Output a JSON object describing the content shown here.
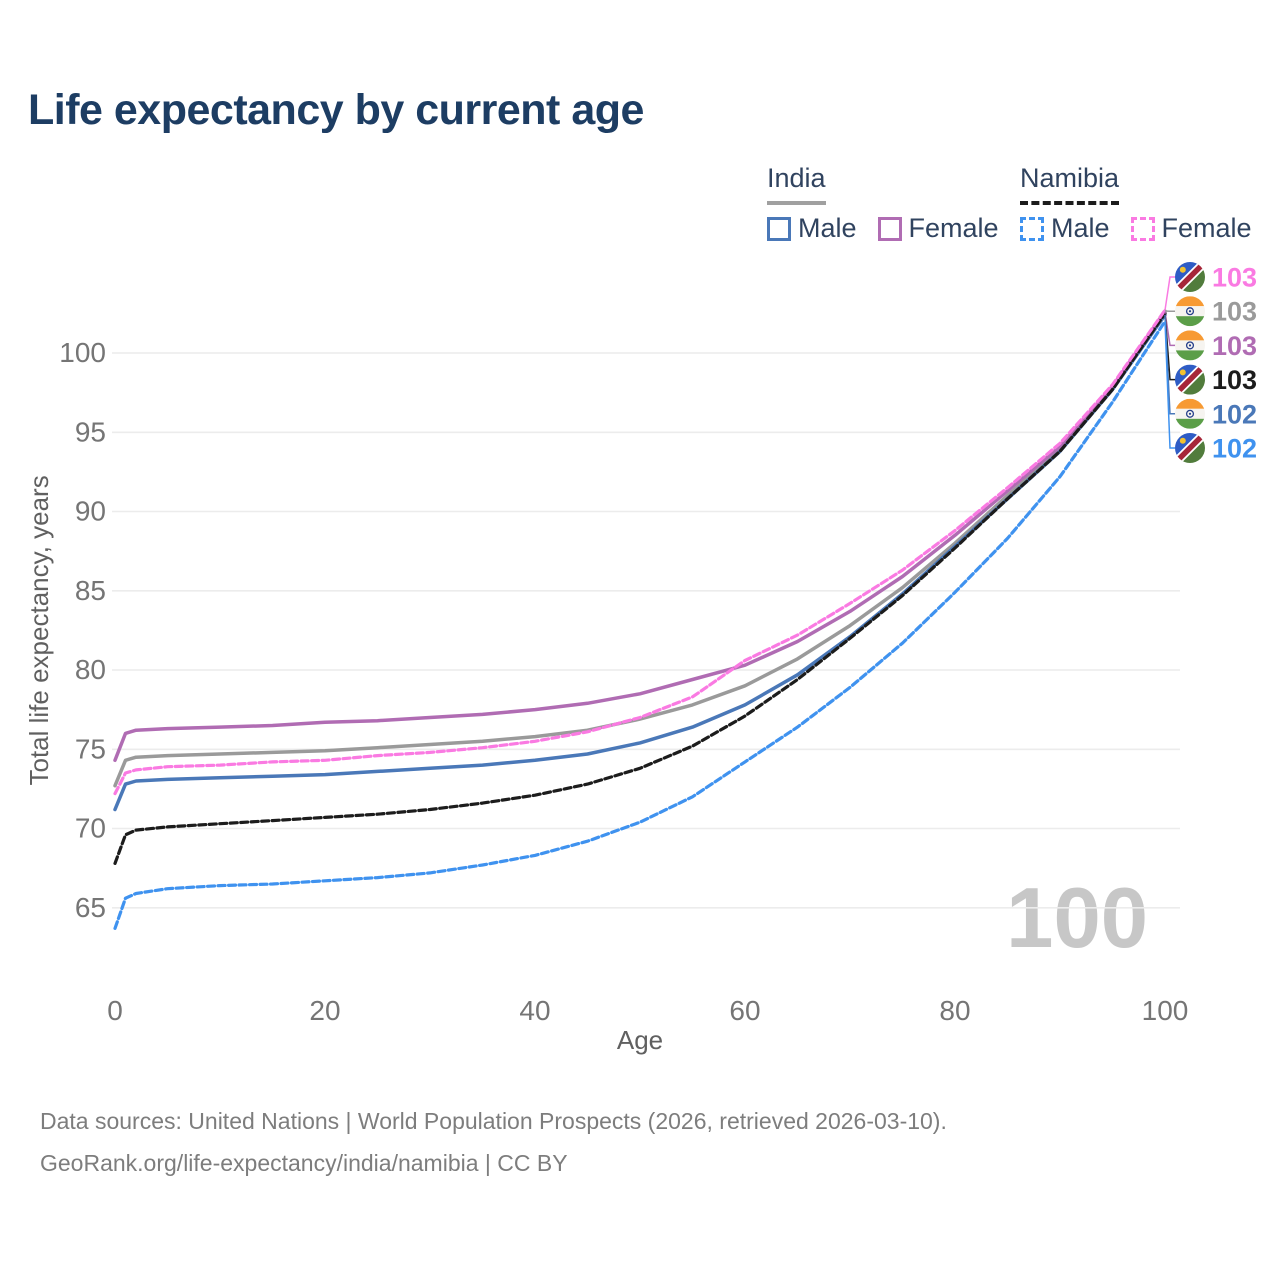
{
  "page": {
    "title": "Life expectancy by current age",
    "watermark_age": "100",
    "footer_line1": "Data sources: United Nations | World Population Prospects (2026, retrieved 2026-03-10).",
    "footer_line2": "GeoRank.org/life-expectancy/india/namibia | CC BY"
  },
  "legend": {
    "groups": [
      {
        "name": "India",
        "underline_style": "solid",
        "underline_color": "#a0a0a0",
        "items": [
          {
            "label": "Male",
            "color": "#4a78b8",
            "dashed": false
          },
          {
            "label": "Female",
            "color": "#b06cb3",
            "dashed": false
          }
        ]
      },
      {
        "name": "Namibia",
        "underline_style": "dashed",
        "underline_color": "#1c1c1c",
        "items": [
          {
            "label": "Male",
            "color": "#3f92ef",
            "dashed": true
          },
          {
            "label": "Female",
            "color": "#fa7ae2",
            "dashed": true
          }
        ]
      }
    ]
  },
  "chart_data": {
    "type": "line",
    "title": "Life expectancy by current age",
    "xlabel": "Age",
    "ylabel": "Total life expectancy, years",
    "x_ticks": [
      0,
      20,
      40,
      60,
      80,
      100
    ],
    "y_ticks": [
      65,
      70,
      75,
      80,
      85,
      90,
      95,
      100
    ],
    "xlim": [
      0,
      100
    ],
    "ylim": [
      63,
      104
    ],
    "grid": "horizontal",
    "legend_position": "top-right",
    "age_indicator": "100",
    "x": [
      0,
      1,
      2,
      5,
      10,
      15,
      20,
      25,
      30,
      35,
      40,
      45,
      50,
      55,
      60,
      65,
      70,
      75,
      80,
      85,
      90,
      95,
      100
    ],
    "series": [
      {
        "id": "india-total",
        "name": "India",
        "country": "India",
        "sex": "Both",
        "color": "#9a9a9a",
        "dash": "",
        "flag": "india-flag-icon",
        "end_label": "103",
        "values": [
          72.7,
          74.3,
          74.5,
          74.6,
          74.7,
          74.8,
          74.9,
          75.1,
          75.3,
          75.5,
          75.8,
          76.2,
          76.9,
          77.8,
          79.0,
          80.7,
          82.8,
          85.2,
          88.0,
          91.0,
          93.9,
          97.8,
          102.65
        ]
      },
      {
        "id": "india-male",
        "name": "India Male",
        "country": "India",
        "sex": "Male",
        "color": "#4a78b8",
        "dash": "",
        "flag": "india-flag-icon",
        "end_label": "102",
        "values": [
          71.2,
          72.8,
          73.0,
          73.1,
          73.2,
          73.3,
          73.4,
          73.6,
          73.8,
          74.0,
          74.3,
          74.7,
          75.4,
          76.4,
          77.8,
          79.7,
          82.1,
          84.8,
          87.8,
          90.8,
          93.8,
          97.7,
          102.4
        ]
      },
      {
        "id": "india-female",
        "name": "India Female",
        "country": "India",
        "sex": "Female",
        "color": "#b06cb3",
        "dash": "",
        "flag": "india-flag-icon",
        "end_label": "103",
        "values": [
          74.3,
          76.0,
          76.2,
          76.3,
          76.4,
          76.5,
          76.7,
          76.8,
          77.0,
          77.2,
          77.5,
          77.9,
          78.5,
          79.4,
          80.3,
          81.8,
          83.7,
          85.9,
          88.5,
          91.3,
          94.1,
          97.9,
          102.6
        ]
      },
      {
        "id": "namibia-total",
        "name": "Namibia",
        "country": "Namibia",
        "sex": "Both",
        "color": "#1c1c1c",
        "dash": "7 3.5",
        "flag": "namibia-flag-icon",
        "end_label": "103",
        "values": [
          67.8,
          69.6,
          69.9,
          70.1,
          70.3,
          70.5,
          70.7,
          70.9,
          71.2,
          71.6,
          72.1,
          72.8,
          73.8,
          75.2,
          77.1,
          79.4,
          82.0,
          84.7,
          87.7,
          90.8,
          93.8,
          97.7,
          102.5
        ]
      },
      {
        "id": "namibia-female",
        "name": "Namibia Female",
        "country": "Namibia",
        "sex": "Female",
        "color": "#fa7ae2",
        "dash": "7 3.5",
        "flag": "namibia-flag-icon",
        "end_label": "103",
        "values": [
          72.2,
          73.5,
          73.7,
          73.9,
          74.0,
          74.2,
          74.3,
          74.6,
          74.8,
          75.1,
          75.5,
          76.1,
          77.0,
          78.3,
          80.6,
          82.2,
          84.2,
          86.3,
          88.8,
          91.5,
          94.3,
          98.0,
          102.7
        ]
      },
      {
        "id": "namibia-male",
        "name": "Namibia Male",
        "country": "Namibia",
        "sex": "Male",
        "color": "#3f92ef",
        "dash": "7 3.5",
        "flag": "namibia-flag-icon",
        "end_label": "102",
        "values": [
          63.7,
          65.6,
          65.9,
          66.2,
          66.4,
          66.5,
          66.7,
          66.9,
          67.2,
          67.7,
          68.3,
          69.2,
          70.4,
          72.0,
          74.2,
          76.4,
          78.9,
          81.7,
          84.9,
          88.3,
          92.2,
          96.9,
          102.0
        ]
      }
    ]
  }
}
